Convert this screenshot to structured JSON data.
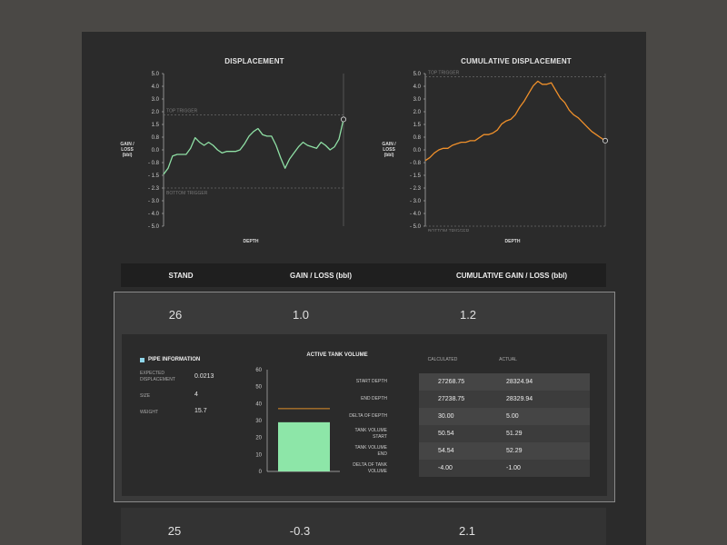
{
  "charts": {
    "displacement": {
      "title": "DISPLACEMENT",
      "ylabel": "GAIN /\nLOSS\n(bbl)",
      "xlabel": "DEPTH",
      "top_trigger": "TOP TRIGGER",
      "bottom_trigger": "BOTTOM TRIGGER"
    },
    "cumulative": {
      "title": "CUMULATIVE DISPLACEMENT",
      "ylabel": "GAIN /\nLOSS\n(bbl)",
      "xlabel": "DEPTH",
      "top_trigger": "TOP TRIGGER",
      "bottom_trigger": "BOTTOM TRIGGER"
    },
    "colors": {
      "displacement_line": "#8fe0a5",
      "cumulative_line": "#f0902a",
      "trigger": "#6a6a6a"
    }
  },
  "chart_data": [
    {
      "type": "line",
      "title": "DISPLACEMENT",
      "xlabel": "DEPTH",
      "ylabel": "GAIN / LOSS (bbl)",
      "ylim": [
        -5.0,
        5.0
      ],
      "yticks": [
        "5.0",
        "4.0",
        "3.0",
        "2.0",
        "1.5",
        "0.8",
        "0.0",
        "- 0.8",
        "- 1.5",
        "- 2.3",
        "- 3.0",
        "- 4.0",
        "- 5.0"
      ],
      "top_trigger": 2.3,
      "bottom_trigger": -2.5,
      "x": [
        0,
        1,
        2,
        3,
        4,
        5,
        6,
        7,
        8,
        9,
        10,
        11,
        12,
        13,
        14,
        15,
        16,
        17,
        18,
        19,
        20,
        21,
        22,
        23,
        24,
        25,
        26,
        27,
        28,
        29,
        30,
        31,
        32,
        33,
        34,
        35,
        36,
        37,
        38,
        39,
        40
      ],
      "values": [
        -1.6,
        -1.2,
        -0.4,
        -0.3,
        -0.3,
        -0.3,
        0.1,
        0.8,
        0.5,
        0.3,
        0.5,
        0.3,
        0.0,
        -0.2,
        -0.1,
        -0.1,
        -0.1,
        0.0,
        0.4,
        0.9,
        1.2,
        1.4,
        1.0,
        0.9,
        0.9,
        0.3,
        -0.5,
        -1.2,
        -0.6,
        -0.2,
        0.2,
        0.5,
        0.3,
        0.2,
        0.1,
        0.5,
        0.3,
        0.0,
        0.2,
        0.7,
        2.0
      ]
    },
    {
      "type": "line",
      "title": "CUMULATIVE DISPLACEMENT",
      "xlabel": "DEPTH",
      "ylabel": "GAIN / LOSS (bbl)",
      "ylim": [
        -5.0,
        5.0
      ],
      "yticks": [
        "5.0",
        "4.0",
        "3.0",
        "2.0",
        "1.5",
        "0.8",
        "0.0",
        "- 0.8",
        "- 1.5",
        "- 2.3",
        "- 3.0",
        "- 4.0",
        "- 5.0"
      ],
      "top_trigger": 4.8,
      "bottom_trigger": -5.0,
      "x": [
        0,
        1,
        2,
        3,
        4,
        5,
        6,
        7,
        8,
        9,
        10,
        11,
        12,
        13,
        14,
        15,
        16,
        17,
        18,
        19,
        20,
        21,
        22,
        23,
        24,
        25,
        26,
        27,
        28,
        29,
        30,
        31,
        32,
        33,
        34,
        35,
        36,
        37,
        38,
        39,
        40
      ],
      "values": [
        -0.7,
        -0.5,
        -0.2,
        0.0,
        0.1,
        0.1,
        0.3,
        0.4,
        0.5,
        0.5,
        0.6,
        0.6,
        0.8,
        1.0,
        1.0,
        1.1,
        1.3,
        1.7,
        1.9,
        2.0,
        2.3,
        2.8,
        3.2,
        3.7,
        4.2,
        4.5,
        4.3,
        4.3,
        4.4,
        3.9,
        3.4,
        3.1,
        2.6,
        2.3,
        2.1,
        1.8,
        1.5,
        1.2,
        1.0,
        0.8,
        0.6
      ]
    },
    {
      "type": "bar",
      "title": "ACTIVE TANK VOLUME",
      "categories": [
        ""
      ],
      "values": [
        29
      ],
      "reference_line": 37,
      "ylim": [
        0,
        60
      ],
      "yticks": [
        "60",
        "50",
        "40",
        "30",
        "20",
        "10",
        "0"
      ]
    }
  ],
  "table": {
    "headers": {
      "stand": "STAND",
      "gain_loss": "GAIN / LOSS (bbl)",
      "cumulative": "CUMULATIVE GAIN / LOSS (bbl)"
    },
    "rows": [
      {
        "stand": "26",
        "gain_loss": "1.0",
        "cumulative": "1.2"
      },
      {
        "stand": "25",
        "gain_loss": "-0.3",
        "cumulative": "2.1"
      }
    ]
  },
  "pipe": {
    "title": "PIPE INFORMATION",
    "expected_label": "EXPECTED\nDISPLACEMENT",
    "expected_value": "0.0213",
    "size_label": "SIZE",
    "size_value": "4",
    "weight_label": "WEIGHT",
    "weight_value": "15.7",
    "icon_color": "#8fd6ea"
  },
  "tank": {
    "title": "ACTIVE TANK VOLUME",
    "bar_color": "#8de6a8",
    "line_color": "#e0902a"
  },
  "measures": {
    "col_calculated": "CALCULATED",
    "col_actual": "ACTUAL",
    "rows": [
      {
        "label": "START DEPTH",
        "calculated": "27268.75",
        "actual": "28324.94"
      },
      {
        "label": "END DEPTH",
        "calculated": "27238.75",
        "actual": "28329.94"
      },
      {
        "label": "DELTA OF DEPTH",
        "calculated": "30.00",
        "actual": "5.00"
      },
      {
        "label": "TANK VOLUME\nSTART",
        "calculated": "50.54",
        "actual": "51.29"
      },
      {
        "label": "TANK VOLUME\nEND",
        "calculated": "54.54",
        "actual": "52.29"
      },
      {
        "label": "DELTA OF TANK\nVOLUME",
        "calculated": "-4.00",
        "actual": "-1.00"
      }
    ]
  }
}
